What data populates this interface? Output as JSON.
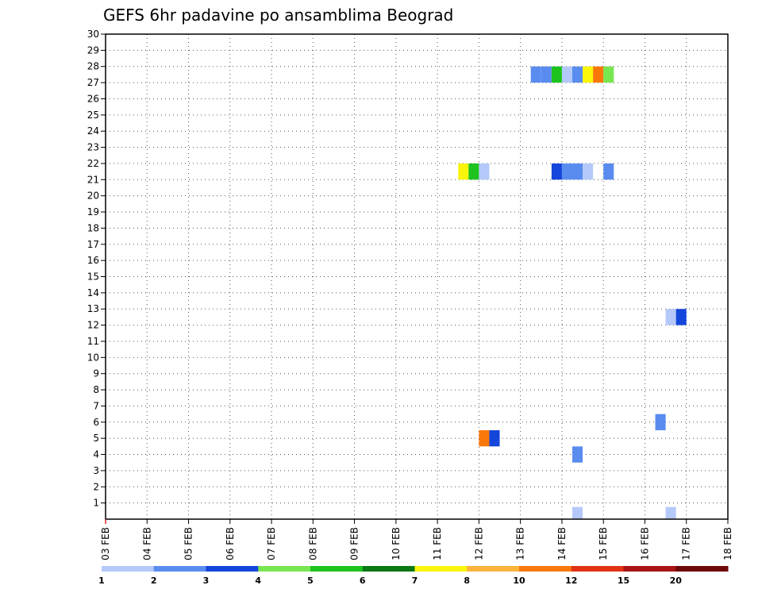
{
  "chart_data": {
    "type": "heatmap",
    "title": "GEFS 6hr padavine po ansamblima Beograd",
    "xlabel": "",
    "ylabel": "",
    "x_tick_labels": [
      "03 FEB",
      "04 FEB",
      "05 FEB",
      "06 FEB",
      "07 FEB",
      "08 FEB",
      "09 FEB",
      "10 FEB",
      "11 FEB",
      "12 FEB",
      "13 FEB",
      "14 FEB",
      "15 FEB",
      "16 FEB",
      "17 FEB",
      "18 FEB"
    ],
    "x_range_days": [
      3,
      18
    ],
    "y_range": [
      0,
      30
    ],
    "y_tick_labels": [
      "1",
      "2",
      "3",
      "4",
      "5",
      "6",
      "7",
      "8",
      "9",
      "10",
      "11",
      "12",
      "13",
      "14",
      "15",
      "16",
      "17",
      "18",
      "19",
      "20",
      "21",
      "22",
      "23",
      "24",
      "25",
      "26",
      "27",
      "28",
      "29",
      "30"
    ],
    "grid": true,
    "colorbar": {
      "placement": "bottom",
      "labels": [
        "1",
        "2",
        "3",
        "4",
        "5",
        "6",
        "7",
        "8",
        "10",
        "12",
        "15",
        "20"
      ],
      "colors": [
        "#b4c8fa",
        "#5a8cf0",
        "#1446dc",
        "#78e650",
        "#1ec31e",
        "#0a7814",
        "#faf50a",
        "#fab43c",
        "#fa780a",
        "#e13214",
        "#aa1414",
        "#6e0a0a"
      ]
    },
    "cells": [
      {
        "member": 27.5,
        "day": 13.25,
        "level": 2
      },
      {
        "member": 27.5,
        "day": 13.5,
        "level": 2
      },
      {
        "member": 27.5,
        "day": 13.75,
        "level": 5
      },
      {
        "member": 27.5,
        "day": 14.0,
        "level": 1
      },
      {
        "member": 27.5,
        "day": 14.25,
        "level": 2
      },
      {
        "member": 27.5,
        "day": 14.5,
        "level": 7
      },
      {
        "member": 27.5,
        "day": 14.75,
        "level": 9
      },
      {
        "member": 27.5,
        "day": 15.0,
        "level": 4
      },
      {
        "member": 21.5,
        "day": 11.5,
        "level": 7
      },
      {
        "member": 21.5,
        "day": 11.75,
        "level": 5
      },
      {
        "member": 21.5,
        "day": 12.0,
        "level": 1
      },
      {
        "member": 21.5,
        "day": 13.75,
        "level": 3
      },
      {
        "member": 21.5,
        "day": 14.0,
        "level": 2
      },
      {
        "member": 21.5,
        "day": 14.25,
        "level": 2
      },
      {
        "member": 21.5,
        "day": 14.5,
        "level": 1
      },
      {
        "member": 21.5,
        "day": 15.0,
        "level": 2
      },
      {
        "member": 12.5,
        "day": 16.5,
        "level": 1
      },
      {
        "member": 12.5,
        "day": 16.75,
        "level": 3
      },
      {
        "member": 6.0,
        "day": 16.25,
        "level": 2
      },
      {
        "member": 5.0,
        "day": 12.0,
        "level": 9
      },
      {
        "member": 5.0,
        "day": 12.25,
        "level": 3
      },
      {
        "member": 4.0,
        "day": 14.25,
        "level": 2
      },
      {
        "member": 0.25,
        "day": 14.25,
        "level": 1
      },
      {
        "member": 0.25,
        "day": 16.5,
        "level": 1
      }
    ]
  }
}
